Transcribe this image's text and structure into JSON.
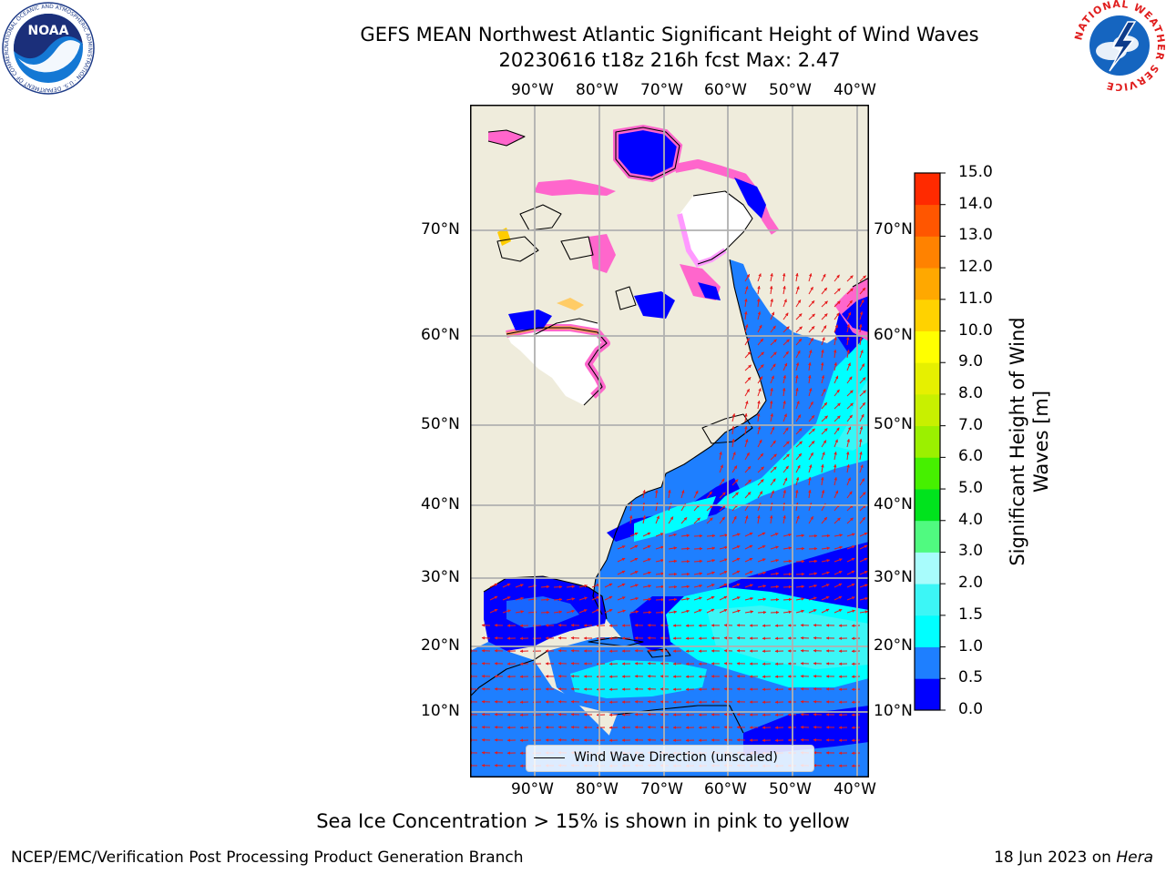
{
  "header": {
    "title_line1": "GEFS MEAN Northwest Atlantic Significant Height of Wind Waves",
    "title_line2": "20230616 t18z 216h fcst   Max: 2.47"
  },
  "logos": {
    "noaa_text": "NOAA",
    "noaa_ring_text": "NATIONAL OCEANIC AND ATMOSPHERIC ADMINISTRATION · U.S. DEPARTMENT OF COMMERCE",
    "nws_ring_text": "NATIONAL WEATHER SERVICE"
  },
  "map": {
    "lon_labels": [
      "90°W",
      "80°W",
      "70°W",
      "60°W",
      "50°W",
      "40°W"
    ],
    "lat_labels": [
      "70°N",
      "60°N",
      "50°N",
      "40°N",
      "30°N",
      "20°N",
      "10°N"
    ],
    "legend_label": "Wind Wave Direction (unscaled)",
    "colors": {
      "land": "#efecdc",
      "sea_ice_white": "#ffffff",
      "coast": "#000000",
      "grid": "#b0b0b0",
      "arrow": "#e51b1b"
    }
  },
  "colorbar": {
    "label": "Significant Height of Wind Waves [m]",
    "ticks": [
      "0.0",
      "0.5",
      "1.0",
      "1.5",
      "2.0",
      "3.0",
      "4.0",
      "5.0",
      "6.0",
      "7.0",
      "8.0",
      "9.0",
      "10.0",
      "11.0",
      "12.0",
      "13.0",
      "14.0",
      "15.0"
    ],
    "colors": [
      "#0000ff",
      "#1e7fff",
      "#00ffff",
      "#3cf6f6",
      "#a8fcfc",
      "#50fa80",
      "#00e31d",
      "#46f000",
      "#9bf000",
      "#c8f000",
      "#e6f000",
      "#ffff00",
      "#ffd200",
      "#ffa800",
      "#ff8200",
      "#ff5600",
      "#ff2a00"
    ]
  },
  "footer": {
    "note": "Sea Ice Concentration > 15% is shown in pink to yellow",
    "left": "NCEP/EMC/Verification Post Processing Product Generation Branch",
    "right_date": "18 Jun 2023 on ",
    "right_host": "Hera"
  }
}
